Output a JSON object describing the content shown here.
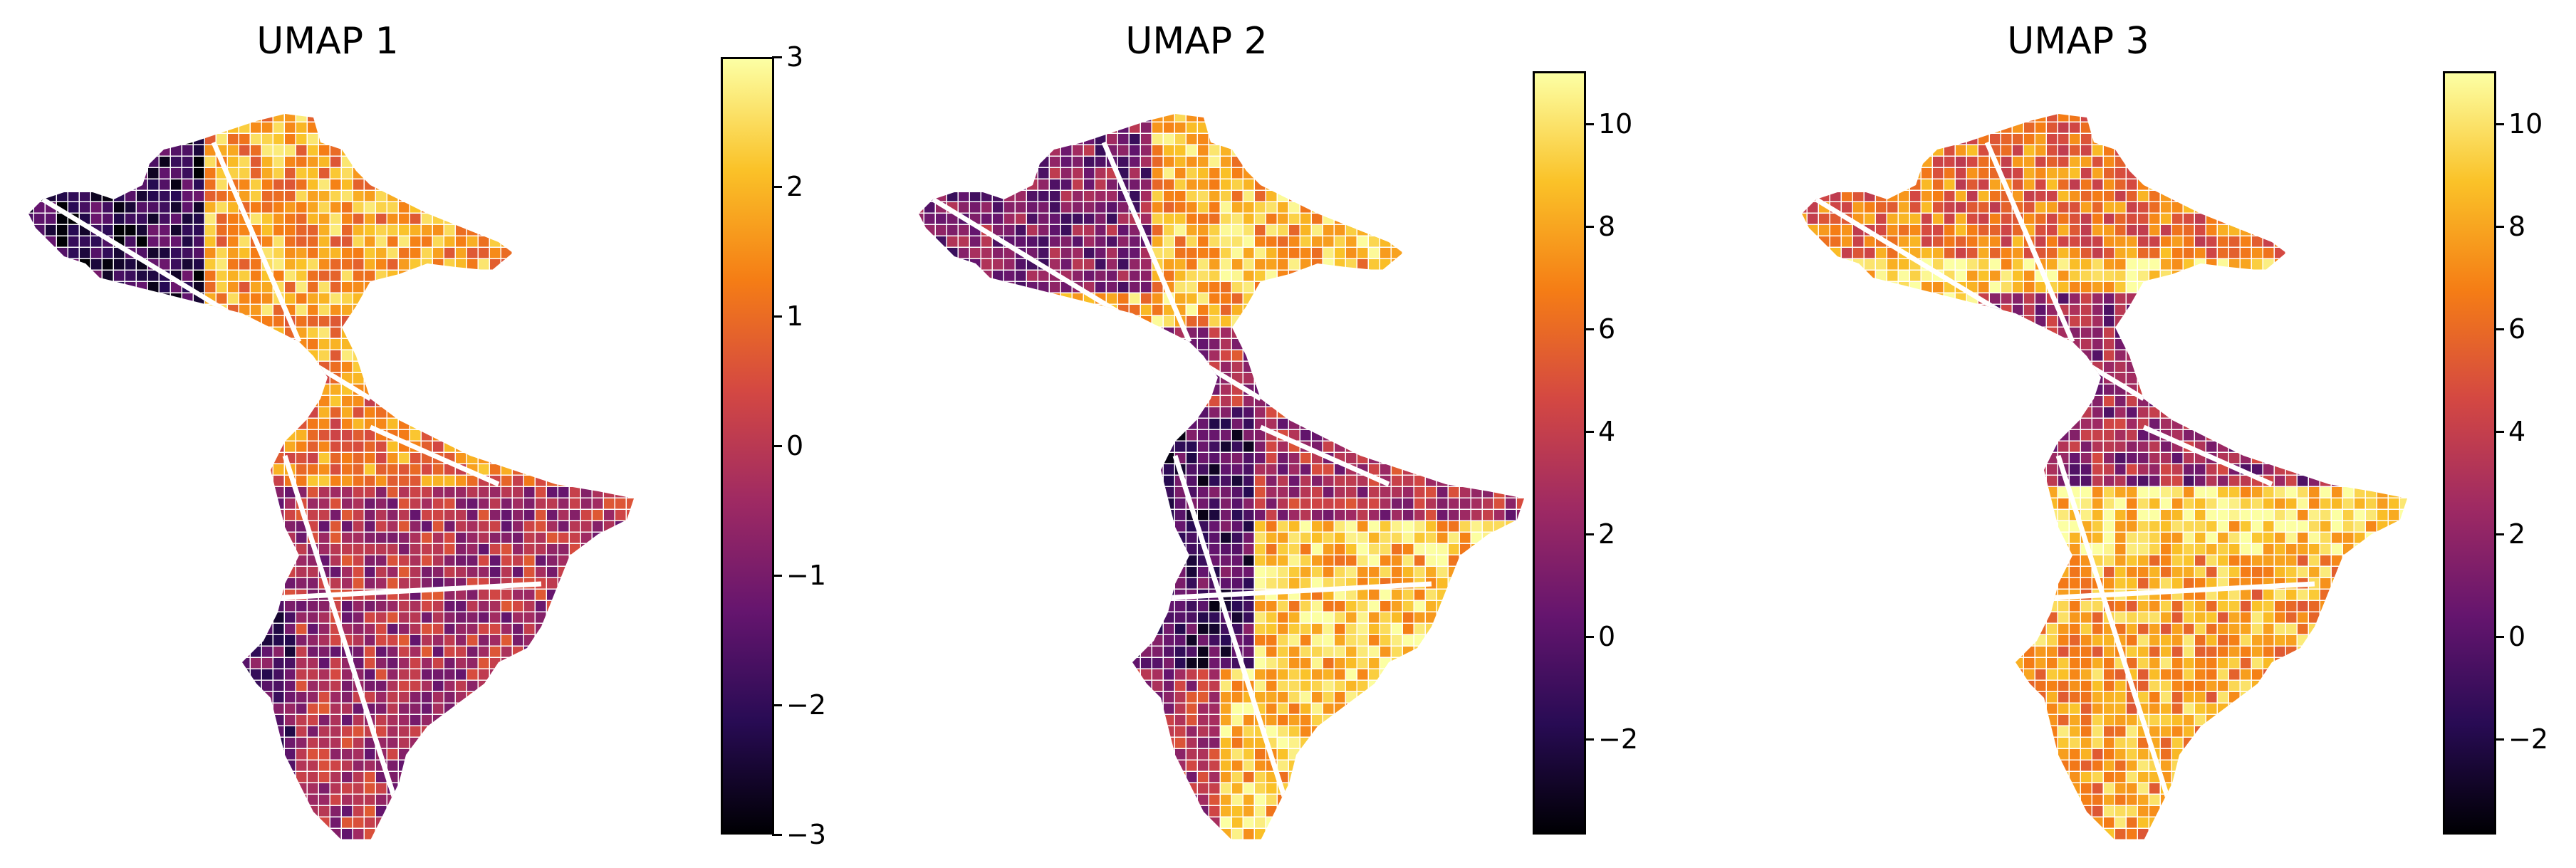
{
  "panels": [
    {
      "title": "UMAP 1",
      "colormap": "inferno",
      "range": [
        -3,
        3
      ],
      "ticks": [
        "3",
        "2",
        "1",
        "0",
        "−1",
        "−2",
        "−3"
      ]
    },
    {
      "title": "UMAP 2",
      "colormap": "inferno",
      "range": [
        -3,
        11
      ],
      "ticks": [
        "10",
        "8",
        "6",
        "4",
        "2",
        "0",
        "−2"
      ]
    },
    {
      "title": "UMAP 3",
      "colormap": "inferno",
      "range": [
        -3,
        11
      ],
      "ticks": [
        "10",
        "8",
        "6",
        "4",
        "2",
        "0",
        "−2"
      ]
    }
  ],
  "colors": {
    "inferno": [
      "#000004",
      "#280b54",
      "#65156e",
      "#9f2a63",
      "#d44842",
      "#f57d15",
      "#fac228",
      "#fcffa4"
    ]
  }
}
